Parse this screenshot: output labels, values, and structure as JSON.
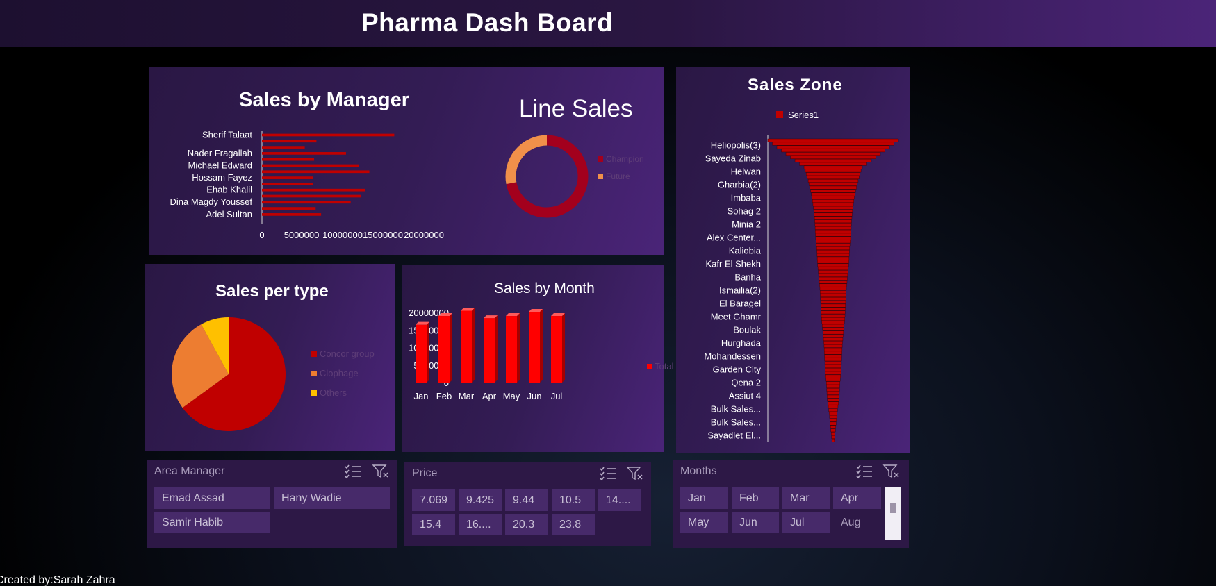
{
  "header": {
    "title": "Pharma Dash Board"
  },
  "charts": {
    "manager": {
      "title": "Sales by Manager",
      "chart_data": {
        "type": "bar",
        "orientation": "horizontal",
        "title": "Sales by Manager",
        "categories": [
          "Sherif Talaat",
          "",
          "",
          "Nader Fragallah",
          "",
          "Michael Edward",
          "",
          "Hossam Fayez",
          "",
          "Ehab Khalil",
          "",
          "Dina Magdy Youssef",
          "",
          "Adel Sultan",
          ""
        ],
        "category_labels": [
          "Sherif Talaat",
          "Nader Fragallah",
          "Michael Edward",
          "Hossam Fayez",
          "Ehab Khalil",
          "Dina Magdy Youssef",
          "Adel Sultan"
        ],
        "values": [
          17000000,
          7000000,
          5500000,
          10800000,
          6700000,
          12500000,
          13800000,
          6600000,
          6600000,
          13300000,
          12700000,
          11400000,
          6900000,
          7600000,
          0
        ],
        "xlim": [
          0,
          20000000
        ],
        "xticks": [
          "0",
          "5000000",
          "10000000",
          "15000000",
          "20000000"
        ],
        "color": "#c00000"
      }
    },
    "line": {
      "title": "Line Sales",
      "chart_data": {
        "type": "pie",
        "donut": true,
        "title": "Line Sales",
        "labels": [
          "Champion",
          "Future"
        ],
        "values": [
          72,
          28
        ],
        "colors": [
          "#a3001d",
          "#f0904a"
        ]
      }
    },
    "type": {
      "title": "Sales per type",
      "chart_data": {
        "type": "pie",
        "title": "Sales per type",
        "labels": [
          "Concor group",
          "Clophage",
          "Others"
        ],
        "values": [
          65,
          27,
          8
        ],
        "colors": [
          "#c00000",
          "#ed7d31",
          "#ffc000"
        ]
      }
    },
    "month": {
      "title": "Sales by Month",
      "chart_data": {
        "type": "bar",
        "title": "Sales by Month",
        "categories": [
          "Jan",
          "Feb",
          "Mar",
          "Apr",
          "May",
          "Jun",
          "Jul"
        ],
        "series": [
          {
            "name": "Total",
            "values": [
              16500000,
              19000000,
              20500000,
              18400000,
              19000000,
              20200000,
              19000000
            ]
          }
        ],
        "ylim": [
          0,
          20000000
        ],
        "yticks": [
          "20000000",
          "15000000",
          "10000000",
          "5000000",
          "0"
        ],
        "color": "#ff0000"
      }
    },
    "zone": {
      "title": "Sales Zone",
      "chart_data": {
        "type": "bar",
        "variant": "funnel",
        "title": "Sales Zone",
        "legend": [
          "Series1"
        ],
        "categories": [
          "Heliopolis(3)",
          "Sayeda Zinab",
          "Helwan",
          "Gharbia(2)",
          "Imbaba",
          "Sohag 2",
          "Minia 2",
          "Alex Center...",
          "Kaliobia",
          "Kafr El Shekh",
          "Banha",
          "Ismailia(2)",
          "El Baragel",
          "Meet Ghamr",
          "Boulak",
          "Hurghada",
          "Mohandessen",
          "Garden City",
          "Qena 2",
          "Assiut 4",
          "Bulk Sales...",
          "Bulk Sales...",
          "Sayadlet El..."
        ],
        "values": [
          100,
          72,
          44,
          38,
          33,
          30,
          28,
          27,
          25,
          24,
          22,
          20,
          19,
          18,
          16,
          14,
          13,
          12,
          10,
          9,
          6,
          4,
          2
        ],
        "color": "#c00000"
      }
    }
  },
  "slicers": {
    "manager": {
      "title": "Area Manager",
      "items": [
        "Emad Assad",
        "Hany Wadie",
        "Samir Habib"
      ]
    },
    "price": {
      "title": "Price",
      "items": [
        "7.069",
        "9.425",
        "9.44",
        "10.5",
        "14....",
        "15.4",
        "16....",
        "20.3",
        "23.8"
      ]
    },
    "months": {
      "title": "Months",
      "items": [
        "Jan",
        "Feb",
        "Mar",
        "Apr",
        "May",
        "Jun",
        "Jul",
        "Aug"
      ]
    }
  },
  "footer": {
    "text": "Created by:Sarah Zahra"
  },
  "colors": {
    "accent": "#c00000",
    "panel": "#331c54"
  }
}
